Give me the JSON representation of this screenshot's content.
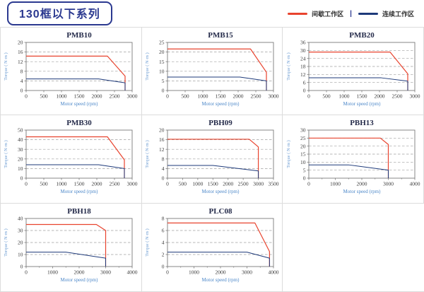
{
  "header": {
    "title": "130框以下系列",
    "legend": [
      {
        "key": "intermittent",
        "label": "间歇工作区",
        "color": "#e8432e"
      },
      {
        "key": "continuous",
        "label": "连续工作区",
        "color": "#1e3a7a"
      }
    ],
    "legend_separator": "|"
  },
  "chart_data": [
    {
      "type": "line",
      "id": "PMB10",
      "title": "PMB10",
      "xlabel": "Motor speed (rpm)",
      "ylabel": "Torque ( N·m )",
      "xlim": [
        0,
        3000
      ],
      "ylim": [
        0,
        20
      ],
      "xticks": [
        0,
        500,
        1000,
        1500,
        2000,
        2500,
        3000
      ],
      "yticks": [
        0,
        4,
        8,
        12,
        16,
        20
      ],
      "grid": "dashed-horizontal",
      "legend_position": "none",
      "series": [
        {
          "key": "intermittent",
          "name": "间歇工作区",
          "color": "#e8432e",
          "points": [
            [
              0,
              14.3
            ],
            [
              2300,
              14.3
            ],
            [
              2800,
              6
            ],
            [
              2800,
              0
            ]
          ]
        },
        {
          "key": "continuous",
          "name": "连续工作区",
          "color": "#1e3a7a",
          "points": [
            [
              0,
              4.8
            ],
            [
              2050,
              4.8
            ],
            [
              2800,
              3.2
            ],
            [
              2800,
              0
            ]
          ]
        }
      ]
    },
    {
      "type": "line",
      "id": "PMB15",
      "title": "PMB15",
      "xlabel": "Motor speed (rpm)",
      "ylabel": "Torque ( N·m )",
      "xlim": [
        0,
        3000
      ],
      "ylim": [
        0,
        25
      ],
      "xticks": [
        0,
        500,
        1000,
        1500,
        2000,
        2500,
        3000
      ],
      "yticks": [
        0,
        5,
        10,
        15,
        20,
        25
      ],
      "grid": "dashed-horizontal",
      "legend_position": "none",
      "series": [
        {
          "key": "intermittent",
          "name": "间歇工作区",
          "color": "#e8432e",
          "points": [
            [
              0,
              21.6
            ],
            [
              2350,
              21.6
            ],
            [
              2800,
              9.5
            ],
            [
              2800,
              0
            ]
          ]
        },
        {
          "key": "continuous",
          "name": "连续工作区",
          "color": "#1e3a7a",
          "points": [
            [
              0,
              7
            ],
            [
              2050,
              7
            ],
            [
              2800,
              5
            ],
            [
              2800,
              0
            ]
          ]
        }
      ]
    },
    {
      "type": "line",
      "id": "PMB20",
      "title": "PMB20",
      "xlabel": "Motor speed (rpm)",
      "ylabel": "Torque ( N·m )",
      "xlim": [
        0,
        3000
      ],
      "ylim": [
        0,
        36
      ],
      "xticks": [
        0,
        500,
        1000,
        1500,
        2000,
        2500,
        3000
      ],
      "yticks": [
        0,
        6,
        12,
        18,
        24,
        30,
        36
      ],
      "grid": "dashed-horizontal",
      "legend_position": "none",
      "series": [
        {
          "key": "intermittent",
          "name": "间歇工作区",
          "color": "#e8432e",
          "points": [
            [
              0,
              28.8
            ],
            [
              2300,
              28.8
            ],
            [
              2800,
              12.5
            ],
            [
              2800,
              0
            ]
          ]
        },
        {
          "key": "continuous",
          "name": "连续工作区",
          "color": "#1e3a7a",
          "points": [
            [
              0,
              9.5
            ],
            [
              2050,
              9.5
            ],
            [
              2800,
              7
            ],
            [
              2800,
              0
            ]
          ]
        }
      ]
    },
    {
      "type": "line",
      "id": "PMB30",
      "title": "PMB30",
      "xlabel": "Motor speed (rpm)",
      "ylabel": "Torque ( N·m )",
      "xlim": [
        0,
        3000
      ],
      "ylim": [
        0,
        50
      ],
      "xticks": [
        0,
        500,
        1000,
        1500,
        2000,
        2500,
        3000
      ],
      "yticks": [
        0,
        10,
        20,
        30,
        40,
        50
      ],
      "grid": "dashed-horizontal",
      "legend_position": "none",
      "series": [
        {
          "key": "intermittent",
          "name": "间歇工作区",
          "color": "#e8432e",
          "points": [
            [
              0,
              43
            ],
            [
              2300,
              43
            ],
            [
              2780,
              19
            ],
            [
              2780,
              0
            ]
          ]
        },
        {
          "key": "continuous",
          "name": "连续工作区",
          "color": "#1e3a7a",
          "points": [
            [
              0,
              14
            ],
            [
              2050,
              14
            ],
            [
              2780,
              10
            ],
            [
              2780,
              0
            ]
          ]
        }
      ]
    },
    {
      "type": "line",
      "id": "PBH09",
      "title": "PBH09",
      "xlabel": "Motor speed (rpm)",
      "ylabel": "Torque ( N·m )",
      "xlim": [
        0,
        3500
      ],
      "ylim": [
        0,
        20
      ],
      "xticks": [
        0,
        500,
        1000,
        1500,
        2000,
        2500,
        3000,
        3500
      ],
      "yticks": [
        0,
        4,
        8,
        12,
        16,
        20
      ],
      "grid": "dashed-horizontal",
      "legend_position": "none",
      "series": [
        {
          "key": "intermittent",
          "name": "间歇工作区",
          "color": "#e8432e",
          "points": [
            [
              0,
              16.2
            ],
            [
              2700,
              16.2
            ],
            [
              3000,
              13
            ],
            [
              3000,
              0
            ]
          ]
        },
        {
          "key": "continuous",
          "name": "连续工作区",
          "color": "#1e3a7a",
          "points": [
            [
              0,
              5.3
            ],
            [
              1500,
              5.3
            ],
            [
              3000,
              3
            ],
            [
              3000,
              0
            ]
          ]
        }
      ]
    },
    {
      "type": "line",
      "id": "PBH13",
      "title": "PBH13",
      "xlabel": "Motor speed (rpm)",
      "ylabel": "Torque ( N·m )",
      "xlim": [
        0,
        4000
      ],
      "ylim": [
        0,
        30
      ],
      "xticks": [
        0,
        1000,
        2000,
        3000,
        4000
      ],
      "xminor": [
        500,
        1500,
        2500,
        3500
      ],
      "yticks": [
        0,
        5,
        10,
        15,
        20,
        25,
        30
      ],
      "grid": "dashed-horizontal",
      "legend_position": "none",
      "series": [
        {
          "key": "intermittent",
          "name": "间歇工作区",
          "color": "#e8432e",
          "points": [
            [
              0,
              25
            ],
            [
              2700,
              25
            ],
            [
              3000,
              21
            ],
            [
              3000,
              0
            ]
          ]
        },
        {
          "key": "continuous",
          "name": "连续工作区",
          "color": "#1e3a7a",
          "points": [
            [
              0,
              8.3
            ],
            [
              1500,
              8.3
            ],
            [
              3000,
              5
            ],
            [
              3000,
              0
            ]
          ]
        }
      ]
    },
    {
      "type": "line",
      "id": "PBH18",
      "title": "PBH18",
      "xlabel": "Motor speed (rpm)",
      "ylabel": "Torque ( N·m )",
      "xlim": [
        0,
        4000
      ],
      "ylim": [
        0,
        40
      ],
      "xticks": [
        0,
        1000,
        2000,
        3000,
        4000
      ],
      "xminor": [
        500,
        1500,
        2500,
        3500
      ],
      "yticks": [
        0,
        10,
        20,
        30,
        40
      ],
      "grid": "dashed-horizontal",
      "legend_position": "none",
      "series": [
        {
          "key": "intermittent",
          "name": "间歇工作区",
          "color": "#e8432e",
          "points": [
            [
              0,
              35
            ],
            [
              2650,
              35
            ],
            [
              3000,
              30
            ],
            [
              3000,
              0
            ]
          ]
        },
        {
          "key": "continuous",
          "name": "连续工作区",
          "color": "#1e3a7a",
          "points": [
            [
              0,
              12
            ],
            [
              1500,
              12
            ],
            [
              3000,
              7
            ],
            [
              3000,
              0
            ]
          ]
        }
      ]
    },
    {
      "type": "line",
      "id": "PLC08",
      "title": "PLC08",
      "xlabel": "Motor speed (rpm)",
      "ylabel": "Torque ( N·m )",
      "xlim": [
        0,
        4000
      ],
      "ylim": [
        0,
        8
      ],
      "xticks": [
        0,
        1000,
        2000,
        3000,
        4000
      ],
      "xminor": [
        500,
        1500,
        2500,
        3500
      ],
      "yticks": [
        0,
        2,
        4,
        6,
        8
      ],
      "grid": "dashed-horizontal",
      "legend_position": "none",
      "series": [
        {
          "key": "intermittent",
          "name": "间歇工作区",
          "color": "#e8432e",
          "points": [
            [
              0,
              7.25
            ],
            [
              3300,
              7.25
            ],
            [
              3850,
              2.5
            ],
            [
              3850,
              0
            ]
          ]
        },
        {
          "key": "continuous",
          "name": "连续工作区",
          "color": "#1e3a7a",
          "points": [
            [
              0,
              2.4
            ],
            [
              3000,
              2.4
            ],
            [
              3850,
              1.4
            ],
            [
              3850,
              0
            ]
          ]
        }
      ]
    }
  ]
}
